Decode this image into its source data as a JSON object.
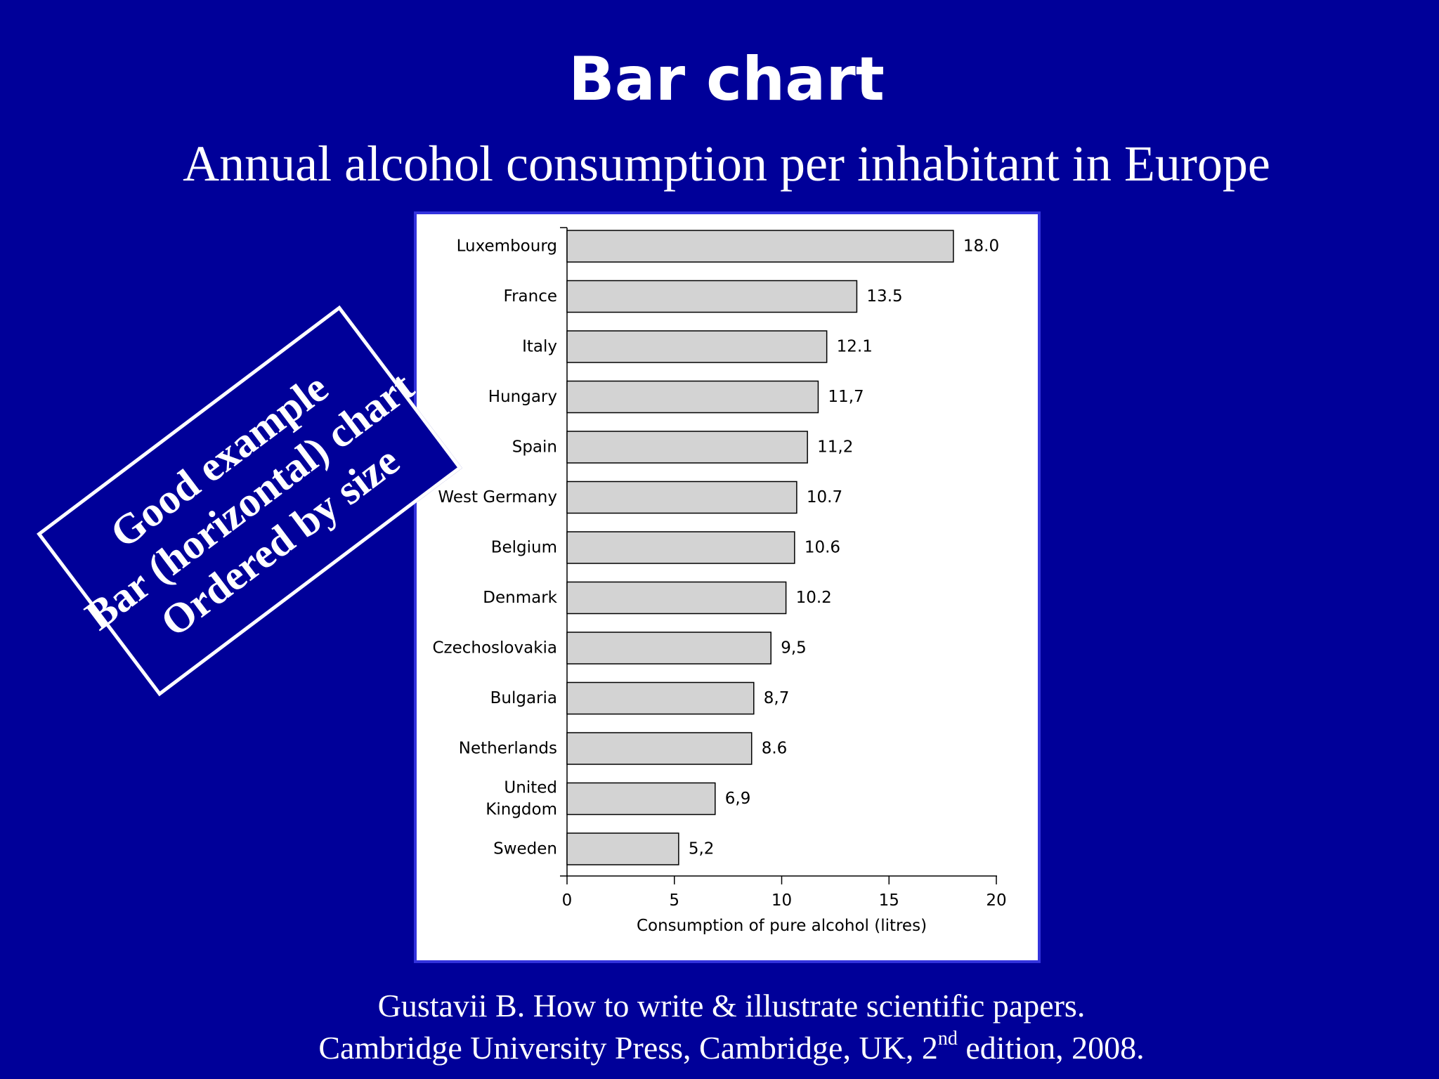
{
  "slide": {
    "title": "Bar chart",
    "subtitle": "Annual alcohol consumption per inhabitant in Europe"
  },
  "callout": {
    "lines": [
      "Good example",
      "Bar (horizontal) chart",
      "Ordered by size"
    ]
  },
  "citation": {
    "line1": "Gustavii B. How to write & illustrate scientific papers.",
    "line2_before": "Cambridge University Press, Cambridge, UK, 2",
    "line2_sup": "nd",
    "line2_after": " edition, 2008."
  },
  "colors": {
    "background": "#000099",
    "bar_fill": "#d3d3d3",
    "bar_stroke": "#000000"
  },
  "chart_data": {
    "type": "bar",
    "orientation": "horizontal",
    "categories": [
      "Luxembourg",
      "France",
      "Italy",
      "Hungary",
      "Spain",
      "West Germany",
      "Belgium",
      "Denmark",
      "Czechoslovakia",
      "Bulgaria",
      "Netherlands",
      "United Kingdom",
      "Sweden"
    ],
    "category_label_lines": [
      [
        "Luxembourg"
      ],
      [
        "France"
      ],
      [
        "Italy"
      ],
      [
        "Hungary"
      ],
      [
        "Spain"
      ],
      [
        "West Germany"
      ],
      [
        "Belgium"
      ],
      [
        "Denmark"
      ],
      [
        "Czechoslovakia"
      ],
      [
        "Bulgaria"
      ],
      [
        "Netherlands"
      ],
      [
        "United",
        "Kingdom"
      ],
      [
        "Sweden"
      ]
    ],
    "values": [
      18.0,
      13.5,
      12.1,
      11.7,
      11.2,
      10.7,
      10.6,
      10.2,
      9.5,
      8.7,
      8.6,
      6.9,
      5.2
    ],
    "value_labels": [
      "18.0",
      "13.5",
      "12.1",
      "11,7",
      "11,2",
      "10.7",
      "10.6",
      "10.2",
      "9,5",
      "8,7",
      "8.6",
      "6,9",
      "5,2"
    ],
    "xlabel": "Consumption of pure alcohol (litres)",
    "ylabel": "",
    "xlim": [
      0,
      20
    ],
    "xticks": [
      0,
      5,
      10,
      15,
      20
    ],
    "xtick_labels": [
      "0",
      "5",
      "10",
      "15",
      "20"
    ],
    "grid": false,
    "legend": "none"
  }
}
